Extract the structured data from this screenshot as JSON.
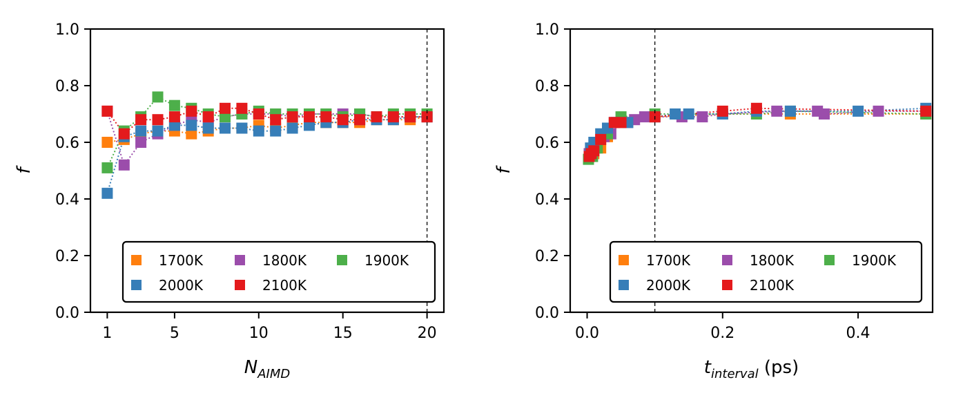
{
  "chart_data": [
    {
      "type": "scatter",
      "title": "",
      "xlabel_main": "N",
      "xlabel_sub": "AIMD",
      "xlabel_unit": "",
      "ylabel": "f",
      "xlim": [
        0,
        21
      ],
      "ylim": [
        0.0,
        1.0
      ],
      "xticks": [
        1,
        5,
        10,
        15,
        20
      ],
      "yticks": [
        "0.0",
        "0.2",
        "0.4",
        "0.6",
        "0.8",
        "1.0"
      ],
      "xtick_labels": [
        "1",
        "5",
        "10",
        "15",
        "20"
      ],
      "vline": 20,
      "grid": false,
      "legend_placement": "lower-right",
      "series": [
        {
          "name": "1700K",
          "color": "#ff7f0e",
          "x": [
            1,
            2,
            3,
            4,
            5,
            6,
            7,
            8,
            9,
            10,
            11,
            12,
            13,
            14,
            15,
            16,
            17,
            18,
            19,
            20
          ],
          "y": [
            0.6,
            0.61,
            0.63,
            0.64,
            0.64,
            0.63,
            0.64,
            0.65,
            0.65,
            0.66,
            0.65,
            0.66,
            0.67,
            0.67,
            0.67,
            0.67,
            0.68,
            0.68,
            0.68,
            0.69
          ]
        },
        {
          "name": "1800K",
          "color": "#9b4dab",
          "x": [
            1,
            2,
            3,
            4,
            5,
            6,
            7,
            8,
            9,
            10,
            11,
            12,
            13,
            14,
            15,
            16,
            17,
            18,
            19,
            20
          ],
          "y": [
            0.71,
            0.52,
            0.6,
            0.63,
            0.66,
            0.68,
            0.67,
            0.69,
            0.7,
            0.7,
            0.7,
            0.69,
            0.7,
            0.7,
            0.7,
            0.7,
            0.69,
            0.69,
            0.69,
            0.69
          ]
        },
        {
          "name": "1900K",
          "color": "#4daf4a",
          "x": [
            1,
            2,
            3,
            4,
            5,
            6,
            7,
            8,
            9,
            10,
            11,
            12,
            13,
            14,
            15,
            16,
            17,
            18,
            19,
            20
          ],
          "y": [
            0.51,
            0.64,
            0.69,
            0.76,
            0.73,
            0.72,
            0.7,
            0.69,
            0.7,
            0.71,
            0.7,
            0.7,
            0.7,
            0.7,
            0.69,
            0.7,
            0.69,
            0.7,
            0.7,
            0.7
          ]
        },
        {
          "name": "2000K",
          "color": "#377eb8",
          "x": [
            1,
            2,
            3,
            4,
            5,
            6,
            7,
            8,
            9,
            10,
            11,
            12,
            13,
            14,
            15,
            16,
            17,
            18,
            19,
            20
          ],
          "y": [
            0.42,
            0.62,
            0.64,
            0.64,
            0.66,
            0.66,
            0.65,
            0.65,
            0.65,
            0.64,
            0.64,
            0.65,
            0.66,
            0.67,
            0.67,
            0.68,
            0.68,
            0.68,
            0.69,
            0.69
          ]
        },
        {
          "name": "2100K",
          "color": "#e41a1c",
          "x": [
            1,
            2,
            3,
            4,
            5,
            6,
            7,
            8,
            9,
            10,
            11,
            12,
            13,
            14,
            15,
            16,
            17,
            18,
            19,
            20
          ],
          "y": [
            0.71,
            0.63,
            0.68,
            0.68,
            0.69,
            0.71,
            0.69,
            0.72,
            0.72,
            0.7,
            0.68,
            0.69,
            0.69,
            0.69,
            0.68,
            0.68,
            0.69,
            0.69,
            0.69,
            0.69
          ]
        }
      ]
    },
    {
      "type": "scatter",
      "title": "",
      "xlabel_main": "t",
      "xlabel_sub": "interval",
      "xlabel_unit": " (ps)",
      "ylabel": "f",
      "xlim": [
        -0.025,
        0.51
      ],
      "ylim": [
        0.0,
        1.0
      ],
      "xticks": [
        0.0,
        0.2,
        0.4
      ],
      "yticks": [
        "0.0",
        "0.2",
        "0.4",
        "0.6",
        "0.8",
        "1.0"
      ],
      "xtick_labels": [
        "0.0",
        "0.2",
        "0.4"
      ],
      "vline": 0.1,
      "grid": false,
      "legend_placement": "lower-right",
      "series": [
        {
          "name": "1700K",
          "color": "#ff7f0e",
          "x": [
            0.005,
            0.01,
            0.02,
            0.03,
            0.05,
            0.1,
            0.2,
            0.3,
            0.5
          ],
          "y": [
            0.55,
            0.56,
            0.58,
            0.62,
            0.67,
            0.69,
            0.7,
            0.7,
            0.7
          ]
        },
        {
          "name": "1800K",
          "color": "#9b4dab",
          "x": [
            0.003,
            0.008,
            0.012,
            0.025,
            0.035,
            0.043,
            0.06,
            0.07,
            0.085,
            0.1,
            0.14,
            0.17,
            0.2,
            0.28,
            0.34,
            0.35,
            0.43,
            0.5
          ],
          "y": [
            0.56,
            0.57,
            0.58,
            0.62,
            0.63,
            0.67,
            0.67,
            0.68,
            0.69,
            0.69,
            0.69,
            0.69,
            0.7,
            0.71,
            0.71,
            0.7,
            0.71,
            0.71
          ]
        },
        {
          "name": "1900K",
          "color": "#4daf4a",
          "x": [
            0.002,
            0.008,
            0.015,
            0.03,
            0.05,
            0.1,
            0.2,
            0.25,
            0.3,
            0.5
          ],
          "y": [
            0.54,
            0.55,
            0.58,
            0.63,
            0.69,
            0.7,
            0.7,
            0.7,
            0.71,
            0.7
          ]
        },
        {
          "name": "2000K",
          "color": "#377eb8",
          "x": [
            0.005,
            0.01,
            0.02,
            0.03,
            0.04,
            0.06,
            0.1,
            0.13,
            0.15,
            0.2,
            0.25,
            0.3,
            0.4,
            0.5
          ],
          "y": [
            0.58,
            0.6,
            0.63,
            0.65,
            0.67,
            0.67,
            0.69,
            0.7,
            0.7,
            0.7,
            0.71,
            0.71,
            0.71,
            0.72
          ]
        },
        {
          "name": "2100K",
          "color": "#e41a1c",
          "x": [
            0.003,
            0.006,
            0.01,
            0.02,
            0.04,
            0.05,
            0.1,
            0.2,
            0.25,
            0.5
          ],
          "y": [
            0.55,
            0.56,
            0.57,
            0.61,
            0.67,
            0.67,
            0.69,
            0.71,
            0.72,
            0.71
          ]
        }
      ]
    }
  ],
  "legend": {
    "entries": [
      {
        "label": "1700K",
        "color": "#ff7f0e"
      },
      {
        "label": "1800K",
        "color": "#9b4dab"
      },
      {
        "label": "1900K",
        "color": "#4daf4a"
      },
      {
        "label": "2000K",
        "color": "#377eb8"
      },
      {
        "label": "2100K",
        "color": "#e41a1c"
      }
    ]
  }
}
